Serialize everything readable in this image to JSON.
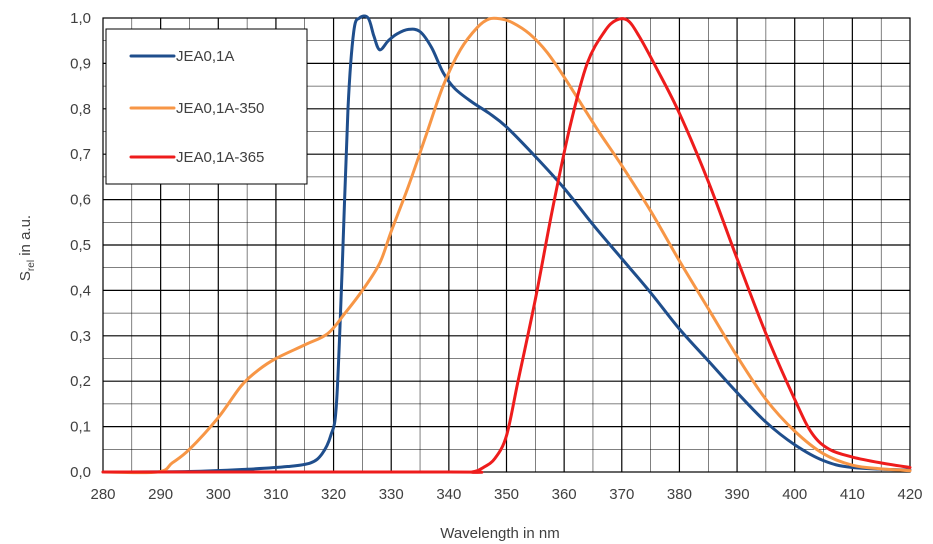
{
  "chart_data": {
    "type": "line",
    "title": "",
    "xlabel": "Wavelength in nm",
    "ylabel": {
      "main": "S",
      "sub": "rel",
      "rest": " in a.u."
    },
    "xlim": [
      280,
      420
    ],
    "ylim": [
      0,
      1
    ],
    "x_ticks": [
      "280",
      "290",
      "300",
      "310",
      "320",
      "330",
      "340",
      "350",
      "360",
      "370",
      "380",
      "390",
      "400",
      "410",
      "420"
    ],
    "y_ticks": [
      "0,0",
      "0,1",
      "0,2",
      "0,3",
      "0,4",
      "0,5",
      "0,6",
      "0,7",
      "0,8",
      "0,9",
      "1,0"
    ],
    "grid": {
      "major": true,
      "minor": true
    },
    "legend_position": "top-left",
    "series": [
      {
        "name": "JEA0,1A",
        "color": "#1F4E8C",
        "points": [
          [
            280,
            0
          ],
          [
            295,
            0.001
          ],
          [
            305,
            0.006
          ],
          [
            312,
            0.012
          ],
          [
            316,
            0.02
          ],
          [
            318,
            0.04
          ],
          [
            319.5,
            0.08
          ],
          [
            320.5,
            0.15
          ],
          [
            321.5,
            0.45
          ],
          [
            322.5,
            0.8
          ],
          [
            323.5,
            0.97
          ],
          [
            324.5,
            1.0
          ],
          [
            326,
            1.0
          ],
          [
            327,
            0.96
          ],
          [
            328,
            0.93
          ],
          [
            329.5,
            0.95
          ],
          [
            331,
            0.965
          ],
          [
            333,
            0.975
          ],
          [
            335,
            0.97
          ],
          [
            337,
            0.935
          ],
          [
            339,
            0.88
          ],
          [
            341,
            0.845
          ],
          [
            344,
            0.815
          ],
          [
            347,
            0.79
          ],
          [
            350,
            0.76
          ],
          [
            355,
            0.695
          ],
          [
            360,
            0.625
          ],
          [
            365,
            0.545
          ],
          [
            370,
            0.47
          ],
          [
            375,
            0.395
          ],
          [
            380,
            0.315
          ],
          [
            385,
            0.245
          ],
          [
            390,
            0.175
          ],
          [
            395,
            0.11
          ],
          [
            400,
            0.06
          ],
          [
            405,
            0.025
          ],
          [
            410,
            0.01
          ],
          [
            420,
            0.004
          ]
        ]
      },
      {
        "name": "JEA0,1A-350",
        "color": "#F79646",
        "points": [
          [
            280,
            0
          ],
          [
            289.5,
            0
          ],
          [
            292,
            0.02
          ],
          [
            295,
            0.05
          ],
          [
            300,
            0.12
          ],
          [
            304,
            0.19
          ],
          [
            307,
            0.225
          ],
          [
            310,
            0.25
          ],
          [
            315,
            0.28
          ],
          [
            319,
            0.305
          ],
          [
            322,
            0.35
          ],
          [
            325,
            0.4
          ],
          [
            328,
            0.46
          ],
          [
            330,
            0.53
          ],
          [
            333,
            0.63
          ],
          [
            336,
            0.74
          ],
          [
            339,
            0.85
          ],
          [
            342,
            0.93
          ],
          [
            345,
            0.98
          ],
          [
            347,
            0.998
          ],
          [
            349,
            0.998
          ],
          [
            351,
            0.99
          ],
          [
            354,
            0.965
          ],
          [
            357,
            0.925
          ],
          [
            360,
            0.87
          ],
          [
            363,
            0.81
          ],
          [
            366,
            0.75
          ],
          [
            370,
            0.675
          ],
          [
            375,
            0.575
          ],
          [
            380,
            0.465
          ],
          [
            385,
            0.36
          ],
          [
            390,
            0.255
          ],
          [
            395,
            0.16
          ],
          [
            400,
            0.09
          ],
          [
            405,
            0.04
          ],
          [
            410,
            0.015
          ],
          [
            415,
            0.007
          ],
          [
            420,
            0.003
          ]
        ]
      },
      {
        "name": "JEA0,1A-365",
        "color": "#EE1C1C",
        "points": [
          [
            280,
            0
          ],
          [
            340,
            0
          ],
          [
            344,
            0
          ],
          [
            346,
            0.01
          ],
          [
            348,
            0.03
          ],
          [
            350,
            0.08
          ],
          [
            352,
            0.2
          ],
          [
            355,
            0.38
          ],
          [
            358,
            0.58
          ],
          [
            361,
            0.76
          ],
          [
            364,
            0.9
          ],
          [
            367,
            0.97
          ],
          [
            369,
            0.995
          ],
          [
            371,
            0.995
          ],
          [
            373,
            0.96
          ],
          [
            376,
            0.89
          ],
          [
            380,
            0.79
          ],
          [
            385,
            0.64
          ],
          [
            390,
            0.47
          ],
          [
            395,
            0.305
          ],
          [
            400,
            0.16
          ],
          [
            403,
            0.085
          ],
          [
            406,
            0.05
          ],
          [
            410,
            0.033
          ],
          [
            415,
            0.02
          ],
          [
            420,
            0.01
          ]
        ]
      }
    ]
  }
}
